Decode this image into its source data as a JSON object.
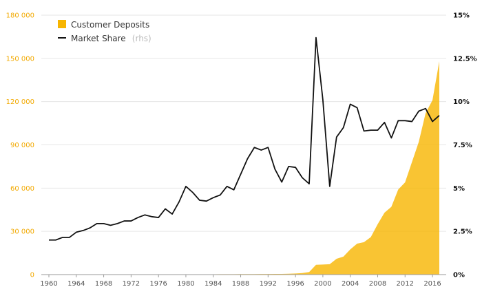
{
  "chart_data": {
    "type": "area+line",
    "title": "",
    "xlabel": "",
    "ylabel": "",
    "xlim": [
      1960,
      2017
    ],
    "ylim_left": [
      0,
      180000
    ],
    "ylim_right": [
      0,
      15
    ],
    "left_ticks": [
      {
        "value": 0,
        "label": "0"
      },
      {
        "value": 30000,
        "label": "30 000"
      },
      {
        "value": 60000,
        "label": "60 000"
      },
      {
        "value": 90000,
        "label": "90 000"
      },
      {
        "value": 120000,
        "label": "120 000"
      },
      {
        "value": 150000,
        "label": "150 000"
      },
      {
        "value": 180000,
        "label": "180 000"
      }
    ],
    "right_ticks": [
      {
        "value": 0,
        "label": "0%"
      },
      {
        "value": 2.5,
        "label": "2.5%"
      },
      {
        "value": 5,
        "label": "5%"
      },
      {
        "value": 7.5,
        "label": "7.5%"
      },
      {
        "value": 10,
        "label": "10%"
      },
      {
        "value": 12.5,
        "label": "12.5%"
      },
      {
        "value": 15,
        "label": "15%"
      }
    ],
    "x_ticks": [
      {
        "value": 1960,
        "label": "1960"
      },
      {
        "value": 1964,
        "label": "1964"
      },
      {
        "value": 1968,
        "label": "1968"
      },
      {
        "value": 1972,
        "label": "1972"
      },
      {
        "value": 1976,
        "label": "1976"
      },
      {
        "value": 1980,
        "label": "1980"
      },
      {
        "value": 1984,
        "label": "1984"
      },
      {
        "value": 1988,
        "label": "1988"
      },
      {
        "value": 1992,
        "label": "1992"
      },
      {
        "value": 1996,
        "label": "1996"
      },
      {
        "value": 2000,
        "label": "2000"
      },
      {
        "value": 2004,
        "label": "2004"
      },
      {
        "value": 2008,
        "label": "2008"
      },
      {
        "value": 2012,
        "label": "2012"
      },
      {
        "value": 2016,
        "label": "2016"
      }
    ],
    "years": [
      1960,
      1961,
      1962,
      1963,
      1964,
      1965,
      1966,
      1967,
      1968,
      1969,
      1970,
      1971,
      1972,
      1973,
      1974,
      1975,
      1976,
      1977,
      1978,
      1979,
      1980,
      1981,
      1982,
      1983,
      1984,
      1985,
      1986,
      1987,
      1988,
      1989,
      1990,
      1991,
      1992,
      1993,
      1994,
      1995,
      1996,
      1997,
      1998,
      1999,
      2000,
      2001,
      2002,
      2003,
      2004,
      2005,
      2006,
      2007,
      2008,
      2009,
      2010,
      2011,
      2012,
      2013,
      2014,
      2015,
      2016,
      2017
    ],
    "series": [
      {
        "name": "Customer Deposits",
        "axis": "left",
        "color": "#f7b500",
        "style": "area",
        "values": [
          50,
          50,
          55,
          60,
          65,
          70,
          75,
          80,
          90,
          95,
          100,
          110,
          120,
          130,
          140,
          150,
          160,
          170,
          180,
          190,
          200,
          210,
          220,
          240,
          260,
          280,
          300,
          320,
          340,
          360,
          380,
          400,
          420,
          460,
          500,
          600,
          800,
          1100,
          1800,
          6800,
          7000,
          7200,
          11000,
          12500,
          17500,
          21500,
          22500,
          26000,
          35000,
          43000,
          47000,
          59000,
          64000,
          78000,
          92000,
          112000,
          121000,
          148000
        ]
      },
      {
        "name": "Market Share",
        "axis": "right",
        "color": "#111111",
        "style": "line",
        "values": [
          2.0,
          2.0,
          2.15,
          2.15,
          2.45,
          2.55,
          2.7,
          2.95,
          2.95,
          2.85,
          2.95,
          3.1,
          3.1,
          3.3,
          3.45,
          3.35,
          3.3,
          3.8,
          3.5,
          4.2,
          5.1,
          4.75,
          4.3,
          4.25,
          4.45,
          4.6,
          5.1,
          4.9,
          5.8,
          6.7,
          7.35,
          7.2,
          7.35,
          6.1,
          5.35,
          6.25,
          6.2,
          5.6,
          5.25,
          13.7,
          10.1,
          5.1,
          7.95,
          8.5,
          9.85,
          9.65,
          8.3,
          8.35,
          8.35,
          8.8,
          7.9,
          8.9,
          8.9,
          8.85,
          9.45,
          9.6,
          8.85,
          9.2
        ]
      }
    ],
    "legend": {
      "placement": "top-left",
      "entries": [
        {
          "label": "Customer Deposits",
          "suffix": ""
        },
        {
          "label": "Market Share",
          "suffix": "(rhs)"
        }
      ]
    },
    "grid": true
  }
}
